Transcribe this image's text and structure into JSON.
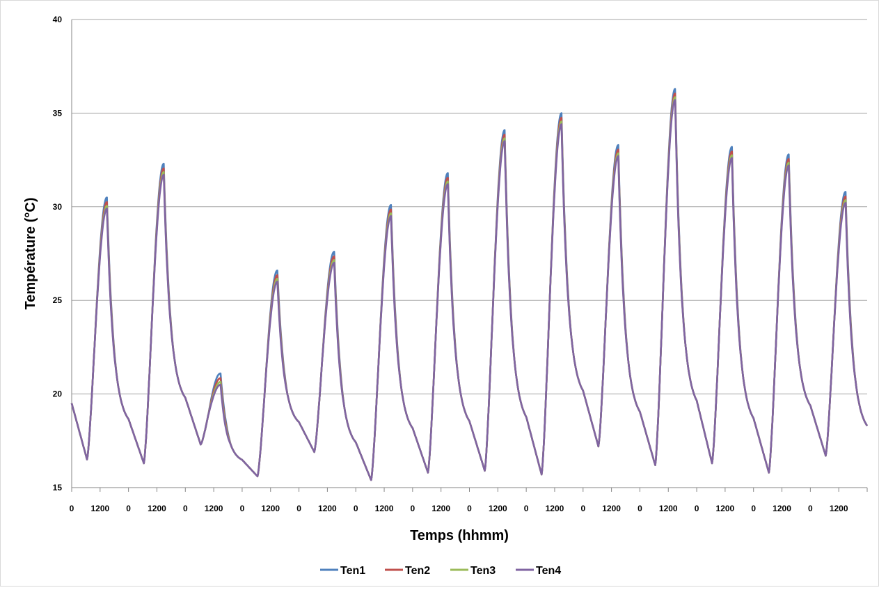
{
  "chart_data": {
    "type": "line",
    "title": "",
    "xlabel": "Temps (hhmm)",
    "ylabel": "Température (°C)",
    "ylim": [
      15,
      40
    ],
    "yticks": [
      "15",
      "20",
      "25",
      "30",
      "35",
      "40"
    ],
    "xticks": [
      "0",
      "1200",
      "0",
      "1200",
      "0",
      "1200",
      "0",
      "1200",
      "0",
      "1200",
      "0",
      "1200",
      "0",
      "1200",
      "0",
      "1200",
      "0",
      "1200",
      "0",
      "1200",
      "0",
      "1200",
      "0",
      "1200",
      "0",
      "1200",
      "0",
      "1200"
    ],
    "xlim_days": [
      0,
      14
    ],
    "grid": "horizontal",
    "legend_position": "bottom",
    "series": [
      {
        "name": "Ten1",
        "color": "#4f81bd",
        "offset": 0.3
      },
      {
        "name": "Ten2",
        "color": "#c0504d",
        "offset": 0.05
      },
      {
        "name": "Ten3",
        "color": "#9bbb59",
        "offset": -0.15
      },
      {
        "name": "Ten4",
        "color": "#8064a2",
        "offset": -0.3
      }
    ],
    "daily_profile": [
      {
        "day": 1,
        "min_start": 19.5,
        "min": 16.5,
        "max": 30.2
      },
      {
        "day": 2,
        "min": 16.3,
        "max": 32.0
      },
      {
        "day": 3,
        "min": 17.3,
        "max": 20.8
      },
      {
        "day": 4,
        "min": 15.6,
        "max": 26.3
      },
      {
        "day": 5,
        "min": 16.9,
        "max": 27.3
      },
      {
        "day": 6,
        "min": 15.4,
        "max": 29.8
      },
      {
        "day": 7,
        "min": 15.8,
        "max": 31.5
      },
      {
        "day": 8,
        "min": 15.9,
        "max": 33.8
      },
      {
        "day": 9,
        "min": 15.7,
        "max": 34.7
      },
      {
        "day": 10,
        "min": 17.2,
        "max": 33.0
      },
      {
        "day": 11,
        "min": 16.2,
        "max": 36.0
      },
      {
        "day": 12,
        "min": 16.3,
        "max": 32.9
      },
      {
        "day": 13,
        "min": 15.8,
        "max": 32.5
      },
      {
        "day": 14,
        "min": 16.7,
        "max": 30.5,
        "end": 18.3
      }
    ]
  }
}
